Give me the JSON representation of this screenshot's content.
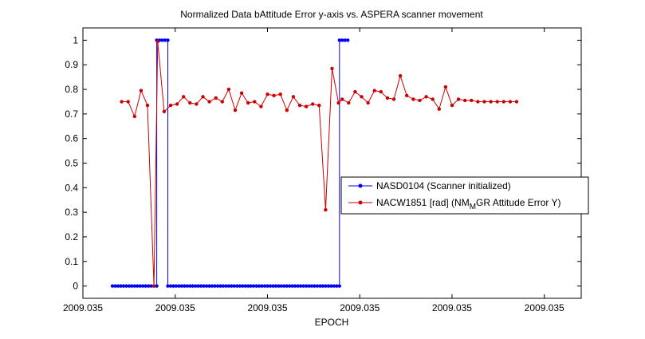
{
  "chart_data": {
    "type": "line",
    "title": "Normalized Data bAttitude Error y-axis vs. ASPERA scanner movement",
    "xlabel": "EPOCH",
    "ylabel": "",
    "x_tick_labels": [
      "2009.035",
      "2009.035",
      "2009.035",
      "2009.035",
      "2009.035",
      "2009.035"
    ],
    "x_tick_positions": [
      0,
      1,
      2,
      3,
      4,
      5
    ],
    "xlim": [
      0,
      5.4
    ],
    "ylim": [
      -0.05,
      1.05
    ],
    "y_ticks": [
      0,
      0.1,
      0.2,
      0.3,
      0.4,
      0.5,
      0.6,
      0.7,
      0.8,
      0.9,
      1
    ],
    "y_tick_labels": [
      "0",
      "0.1",
      "0.2",
      "0.3",
      "0.4",
      "0.5",
      "0.6",
      "0.7",
      "0.8",
      "0.9",
      "1"
    ],
    "grid": false,
    "legend_position": "center-right",
    "series": [
      {
        "name": "NASD0104 (Scanner initialized)",
        "color": "#0000ff",
        "marker": "dot",
        "x": [
          0.32,
          0.35,
          0.38,
          0.41,
          0.44,
          0.47,
          0.5,
          0.53,
          0.56,
          0.59,
          0.62,
          0.65,
          0.68,
          0.71,
          0.74,
          0.77,
          0.8,
          0.8,
          0.83,
          0.86,
          0.89,
          0.92,
          0.92,
          0.95,
          0.98,
          1.01,
          1.04,
          1.07,
          1.1,
          1.13,
          1.16,
          1.19,
          1.22,
          1.25,
          1.28,
          1.31,
          1.34,
          1.37,
          1.4,
          1.43,
          1.46,
          1.49,
          1.52,
          1.55,
          1.58,
          1.61,
          1.64,
          1.67,
          1.7,
          1.73,
          1.76,
          1.79,
          1.82,
          1.85,
          1.88,
          1.91,
          1.94,
          1.97,
          2.0,
          2.03,
          2.06,
          2.09,
          2.12,
          2.15,
          2.18,
          2.21,
          2.24,
          2.27,
          2.3,
          2.33,
          2.36,
          2.39,
          2.42,
          2.45,
          2.48,
          2.51,
          2.54,
          2.57,
          2.6,
          2.63,
          2.66,
          2.69,
          2.72,
          2.75,
          2.78,
          2.78,
          2.81,
          2.84,
          2.87
        ],
        "y": [
          0,
          0,
          0,
          0,
          0,
          0,
          0,
          0,
          0,
          0,
          0,
          0,
          0,
          0,
          0,
          0,
          0,
          1,
          1,
          1,
          1,
          1,
          0,
          0,
          0,
          0,
          0,
          0,
          0,
          0,
          0,
          0,
          0,
          0,
          0,
          0,
          0,
          0,
          0,
          0,
          0,
          0,
          0,
          0,
          0,
          0,
          0,
          0,
          0,
          0,
          0,
          0,
          0,
          0,
          0,
          0,
          0,
          0,
          0,
          0,
          0,
          0,
          0,
          0,
          0,
          0,
          0,
          0,
          0,
          0,
          0,
          0,
          0,
          0,
          0,
          0,
          0,
          0,
          0,
          0,
          0,
          0,
          0,
          0,
          0,
          1,
          1,
          1,
          1
        ]
      },
      {
        "name": "NACW1851 [rad] (NM",
        "name_sub": "M",
        "name_rest": "GR Attitude Error Y)",
        "color": "#cc0000",
        "marker": "dot",
        "x": [
          0.42,
          0.49,
          0.56,
          0.63,
          0.7,
          0.77,
          0.81,
          0.88,
          0.95,
          1.02,
          1.09,
          1.16,
          1.23,
          1.3,
          1.37,
          1.44,
          1.51,
          1.58,
          1.65,
          1.72,
          1.79,
          1.86,
          1.93,
          2.0,
          2.07,
          2.14,
          2.21,
          2.28,
          2.35,
          2.42,
          2.49,
          2.56,
          2.63,
          2.7,
          2.77,
          2.81,
          2.88,
          2.95,
          3.02,
          3.09,
          3.16,
          3.23,
          3.3,
          3.37,
          3.44,
          3.51,
          3.58,
          3.65,
          3.72,
          3.79,
          3.86,
          3.93,
          4.0,
          4.07,
          4.14,
          4.21,
          4.28,
          4.35,
          4.42,
          4.49,
          4.56,
          4.63,
          4.7
        ],
        "y": [
          0.75,
          0.75,
          0.69,
          0.795,
          0.735,
          0.0,
          0.995,
          0.71,
          0.735,
          0.74,
          0.77,
          0.745,
          0.74,
          0.77,
          0.75,
          0.765,
          0.75,
          0.8,
          0.715,
          0.785,
          0.745,
          0.75,
          0.73,
          0.78,
          0.775,
          0.78,
          0.715,
          0.77,
          0.735,
          0.73,
          0.74,
          0.735,
          0.31,
          0.885,
          0.745,
          0.76,
          0.745,
          0.79,
          0.77,
          0.745,
          0.795,
          0.79,
          0.765,
          0.76,
          0.855,
          0.775,
          0.76,
          0.755,
          0.77,
          0.76,
          0.72,
          0.81,
          0.735,
          0.76,
          0.755,
          0.755,
          0.75,
          0.75,
          0.75,
          0.75,
          0.75,
          0.75,
          0.75
        ]
      }
    ]
  }
}
